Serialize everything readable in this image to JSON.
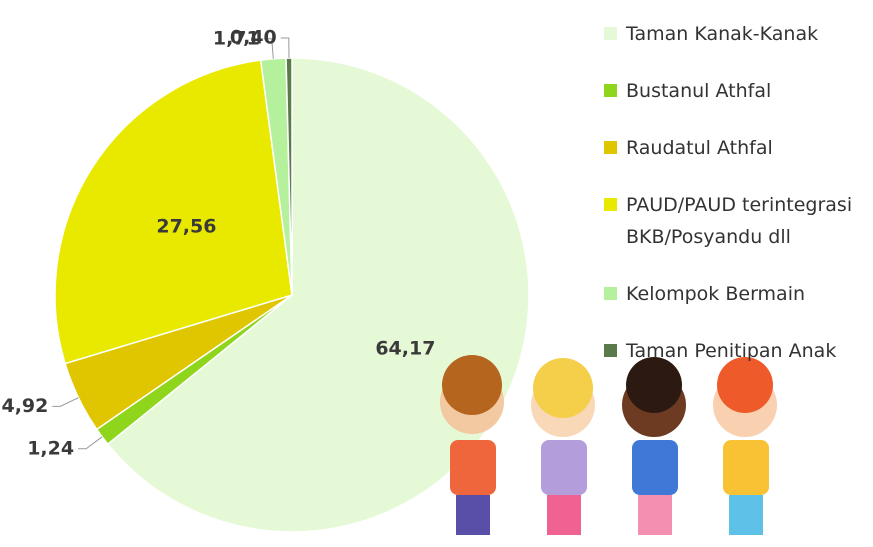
{
  "chart_data": {
    "type": "pie",
    "categories": [
      "Taman Kanak-Kanak",
      "Bustanul Athfal",
      "Raudatul Athfal",
      "PAUD/PAUD terintegrasi BKB/Posyandu dll",
      "Kelompok Bermain",
      "Taman Penitipan Anak"
    ],
    "values": [
      64.17,
      1.24,
      4.92,
      27.56,
      1.71,
      0.4
    ],
    "value_labels": [
      "64,17",
      "1,24",
      "4,92",
      "27,56",
      "1,71",
      "0,40"
    ],
    "colors": [
      "#e6f9d6",
      "#8ed51b",
      "#dfc600",
      "#e9e900",
      "#b5f09c",
      "#5b7a4c"
    ],
    "legend": "right"
  }
}
